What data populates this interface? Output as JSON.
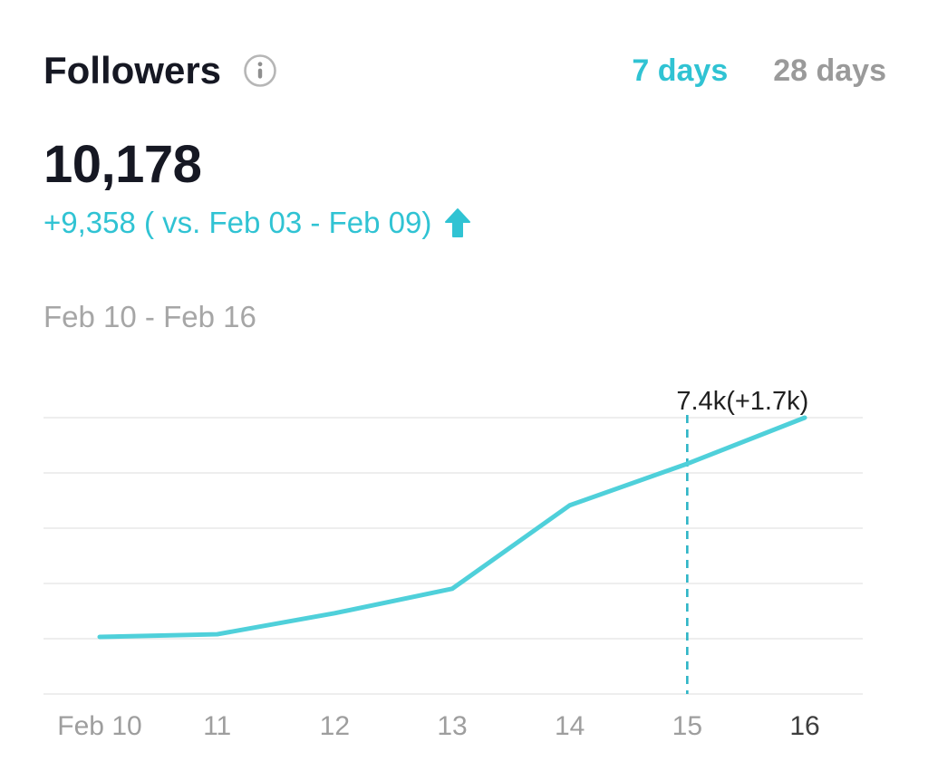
{
  "header": {
    "title": "Followers",
    "tabs": [
      {
        "label": "7 days",
        "active": true
      },
      {
        "label": "28 days",
        "active": false
      }
    ]
  },
  "summary": {
    "total": "10,178",
    "change_text": "+9,358 ( vs. Feb 03 - Feb 09)",
    "trend": "up",
    "period": "Feb 10 - Feb 16"
  },
  "icons": {
    "info": "info-icon",
    "trend_up": "up-arrow-icon"
  },
  "colors": {
    "accent": "#30c3d3",
    "line": "#4fd0da",
    "marker_dash": "#2eb5c6",
    "text_primary": "#161823",
    "text_secondary": "#9a9a9a",
    "grid": "#e8e8e8",
    "tick": "#9e9e9e",
    "tick_current": "#3e3e3e",
    "annotation": "#202020"
  },
  "chart_data": {
    "type": "line",
    "x_ticks": [
      "Feb 10",
      "11",
      "12",
      "13",
      "14",
      "15",
      "16"
    ],
    "values": [
      820,
      920,
      1720,
      2650,
      5820,
      7400,
      9150
    ],
    "annotation": {
      "index": 5,
      "label": "7.4k(+1.7k)",
      "x_tick": "15"
    },
    "ylim": [
      -1350,
      9150
    ],
    "gridline_count": 6,
    "grid": true,
    "legend": false,
    "xlabel": "",
    "ylabel": ""
  }
}
